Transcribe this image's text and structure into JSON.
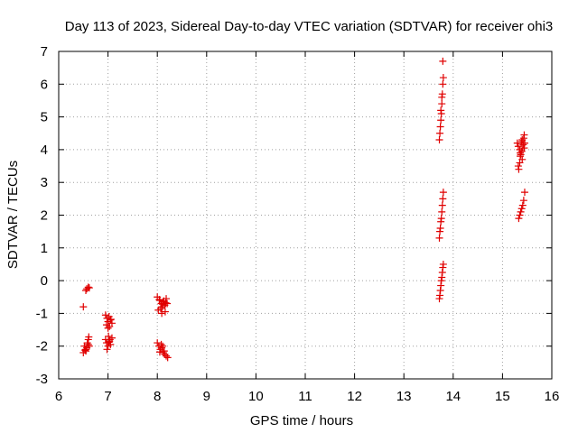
{
  "chart_data": {
    "type": "scatter",
    "title": "Day 113 of 2023, Sidereal Day-to-day VTEC variation (SDTVAR) for receiver ohi3",
    "xlabel": "GPS time / hours",
    "ylabel": "SDTVAR / TECUs",
    "xlim": [
      6,
      16
    ],
    "ylim": [
      -3,
      7
    ],
    "xticks": [
      6,
      7,
      8,
      9,
      10,
      11,
      12,
      13,
      14,
      15,
      16
    ],
    "yticks": [
      -3,
      -2,
      -1,
      0,
      1,
      2,
      3,
      4,
      5,
      6,
      7
    ],
    "grid": true,
    "marker": "+",
    "color": "#e00000",
    "series": [
      {
        "name": "SDTVAR",
        "x": [
          6.5,
          6.55,
          6.57,
          6.6,
          6.62,
          6.52,
          6.55,
          6.57,
          6.6,
          6.62,
          6.55,
          6.58,
          6.6,
          6.5,
          6.53,
          6.61,
          6.95,
          6.98,
          7.0,
          7.02,
          7.05,
          7.08,
          6.97,
          7.03,
          7.06,
          7.0,
          6.95,
          6.97,
          7.0,
          7.03,
          7.05,
          7.08,
          6.98,
          7.01,
          7.04,
          7.02,
          8.0,
          8.05,
          8.08,
          8.1,
          8.12,
          8.15,
          8.18,
          8.2,
          8.02,
          8.07,
          8.13,
          8.16,
          8.09,
          8.11,
          8.04,
          8.17,
          8.0,
          8.03,
          8.06,
          8.09,
          8.12,
          8.15,
          8.18,
          8.21,
          8.08,
          8.14,
          8.11,
          8.05,
          13.72,
          13.73,
          13.74,
          13.75,
          13.76,
          13.77,
          13.78,
          13.79,
          13.8,
          13.75,
          13.77,
          13.79,
          13.72,
          13.73,
          13.74,
          13.75,
          13.76,
          13.77,
          13.78,
          13.79,
          13.8,
          13.72,
          13.73,
          13.74,
          13.75,
          13.76,
          13.77,
          13.78,
          13.79,
          13.8,
          15.3,
          15.32,
          15.35,
          15.38,
          15.4,
          15.42,
          15.44,
          15.36,
          15.39,
          15.33,
          15.33,
          15.35,
          15.37,
          15.39,
          15.41,
          15.43,
          15.45,
          15.36,
          15.4,
          15.44,
          15.32,
          15.35,
          15.37,
          15.39,
          15.41,
          15.43,
          15.45
        ],
        "values": [
          -0.8,
          -0.3,
          -0.25,
          -0.2,
          -0.22,
          -2.0,
          -2.1,
          -2.05,
          -1.95,
          -2.0,
          -2.15,
          -1.9,
          -1.8,
          -2.2,
          -2.12,
          -1.72,
          -1.05,
          -1.15,
          -1.25,
          -1.1,
          -1.2,
          -1.3,
          -1.35,
          -1.4,
          -1.18,
          -1.45,
          -1.8,
          -1.9,
          -2.0,
          -1.85,
          -1.95,
          -1.75,
          -2.1,
          -1.7,
          -1.8,
          -1.88,
          -0.5,
          -0.6,
          -0.7,
          -0.8,
          -0.65,
          -0.75,
          -0.55,
          -0.7,
          -0.9,
          -0.85,
          -0.62,
          -0.95,
          -1.0,
          -0.72,
          -0.58,
          -0.68,
          -1.9,
          -2.0,
          -2.1,
          -2.05,
          -2.2,
          -2.25,
          -2.3,
          -2.35,
          -1.95,
          -2.15,
          -2.0,
          -2.18,
          4.3,
          4.5,
          4.7,
          4.9,
          5.1,
          5.4,
          5.7,
          6.0,
          6.2,
          5.2,
          5.6,
          6.7,
          1.3,
          1.5,
          1.6,
          1.8,
          1.9,
          2.1,
          2.3,
          2.5,
          2.7,
          -0.55,
          -0.45,
          -0.3,
          -0.15,
          0.0,
          0.1,
          0.25,
          0.4,
          0.5,
          4.2,
          4.1,
          4.0,
          4.2,
          4.3,
          4.15,
          4.05,
          3.9,
          4.25,
          3.4,
          1.9,
          2.0,
          2.1,
          2.2,
          2.3,
          2.45,
          2.7,
          3.8,
          3.7,
          4.45,
          3.5,
          3.6,
          3.85,
          3.95,
          4.05,
          4.35,
          4.2
        ]
      }
    ]
  }
}
